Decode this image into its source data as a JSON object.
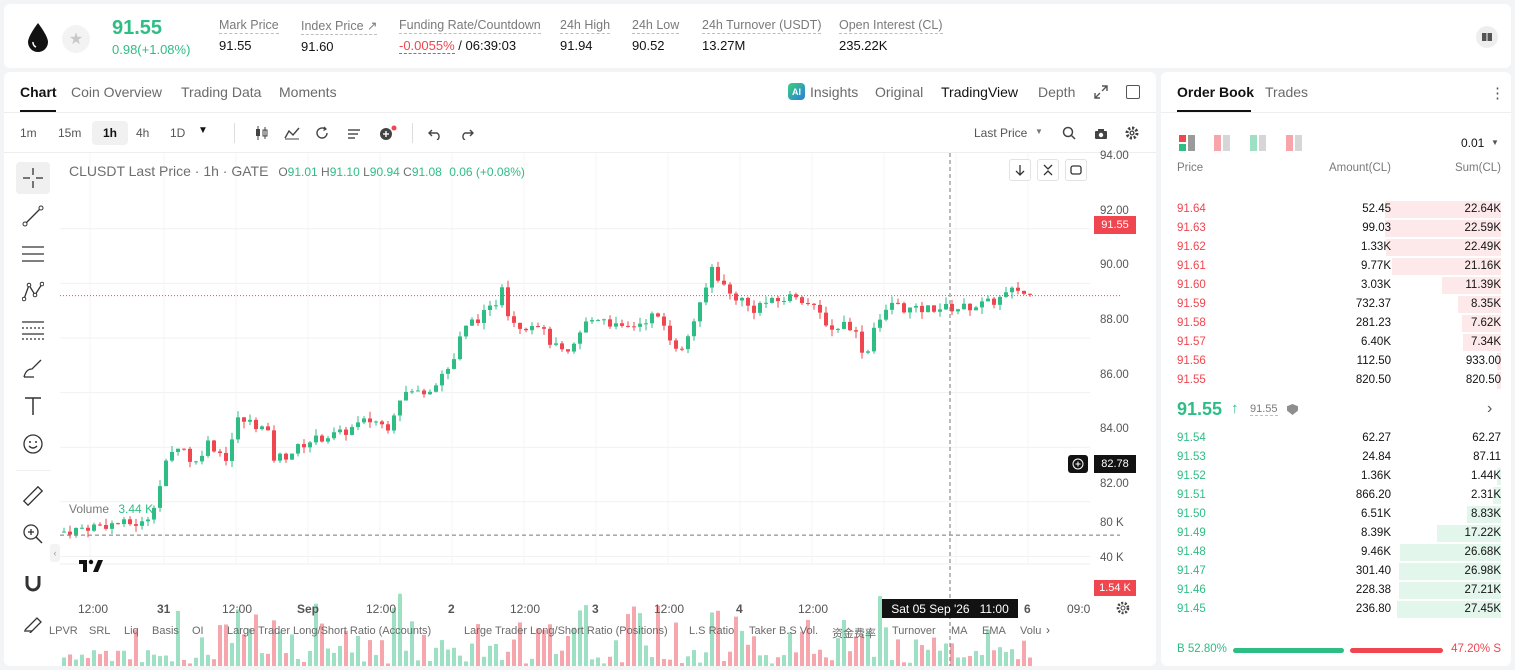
{
  "header": {
    "price": "91.55",
    "change": "0.98(+1.08%)",
    "stats": [
      {
        "label": "Mark Price",
        "value": "91.55"
      },
      {
        "label": "Index Price ↗",
        "value": "91.60"
      },
      {
        "label": "Funding Rate/Countdown",
        "value_a": "-0.0055%",
        "value_b": " / 06:39:03"
      },
      {
        "label": "24h High",
        "value": "91.94"
      },
      {
        "label": "24h Low",
        "value": "90.52"
      },
      {
        "label": "24h Turnover (USDT)",
        "value": "13.27M"
      },
      {
        "label": "Open Interest (CL)",
        "value": "235.22K"
      }
    ]
  },
  "chart_tabs": [
    "Chart",
    "Coin Overview",
    "Trading Data",
    "Moments"
  ],
  "chart_views": {
    "insights": "Insights",
    "original": "Original",
    "tradingview": "TradingView",
    "depth": "Depth",
    "ai_badge": "AI"
  },
  "timeframes": [
    "1m",
    "15m",
    "1h",
    "4h",
    "1D"
  ],
  "price_mode": "Last Price",
  "legend": {
    "symbol": "CLUSDT Last Price · 1h · GATE",
    "o_label": "O",
    "o": "91.01",
    "h_label": "H",
    "h": "91.10",
    "l_label": "L",
    "l": "90.94",
    "c_label": "C",
    "c": "91.08",
    "chg": "0.06 (+0.08%)"
  },
  "volume_legend": {
    "label": "Volume",
    "value": "3.44 K"
  },
  "price_axis": [
    "94.00",
    "92.00",
    "90.00",
    "88.00",
    "86.00",
    "84.00",
    "82.00"
  ],
  "volume_axis": [
    "80 K",
    "40 K"
  ],
  "last_price_tag": "91.55",
  "crosshair_price_tag": "82.78",
  "volume_tag": "1.54 K",
  "time_axis": [
    "12:00",
    "31",
    "12:00",
    "Sep",
    "12:00",
    "2",
    "12:00",
    "3",
    "12:00",
    "4",
    "12:00",
    "6",
    "09:0"
  ],
  "crosshair_time_date": "Sat 05 Sep '26",
  "crosshair_time_hour": "11:00",
  "bottom_indicators": [
    "LPVR",
    "SRL",
    "Liq",
    "Basis",
    "OI",
    "Large Trader Long/Short Ratio (Accounts)",
    "Large Trader Long/Short Ratio (Positions)",
    "L.S Ratio",
    "Taker B.S Vol.",
    "资金费率",
    "Turnover",
    "MA",
    "EMA",
    "Volu"
  ],
  "colors": {
    "up": "#2ebd85",
    "down": "#f0464f",
    "vol_up": "#9ee0c4",
    "vol_down": "#f5a7ad"
  },
  "orderbook": {
    "tabs": [
      "Order Book",
      "Trades"
    ],
    "precision": "0.01",
    "headers": [
      "Price",
      "Amount(CL)",
      "Sum(CL)"
    ],
    "asks": [
      {
        "price": "91.64",
        "amount": "52.45",
        "sum": "22.64K",
        "depth": 0.83
      },
      {
        "price": "91.63",
        "amount": "99.03",
        "sum": "22.59K",
        "depth": 0.83
      },
      {
        "price": "91.62",
        "amount": "1.33K",
        "sum": "22.49K",
        "depth": 0.82
      },
      {
        "price": "91.61",
        "amount": "9.77K",
        "sum": "21.16K",
        "depth": 0.78
      },
      {
        "price": "91.60",
        "amount": "3.03K",
        "sum": "11.39K",
        "depth": 0.42
      },
      {
        "price": "91.59",
        "amount": "732.37",
        "sum": "8.35K",
        "depth": 0.31
      },
      {
        "price": "91.58",
        "amount": "281.23",
        "sum": "7.62K",
        "depth": 0.28
      },
      {
        "price": "91.57",
        "amount": "6.40K",
        "sum": "7.34K",
        "depth": 0.27
      },
      {
        "price": "91.56",
        "amount": "112.50",
        "sum": "933.00",
        "depth": 0.03
      },
      {
        "price": "91.55",
        "amount": "820.50",
        "sum": "820.50",
        "depth": 0.03
      }
    ],
    "mid_price": "91.55",
    "mid_arrow": "↑",
    "mark_price": "91.55",
    "bids": [
      {
        "price": "91.54",
        "amount": "62.27",
        "sum": "62.27",
        "depth": 0.0
      },
      {
        "price": "91.53",
        "amount": "24.84",
        "sum": "87.11",
        "depth": 0.0
      },
      {
        "price": "91.52",
        "amount": "1.36K",
        "sum": "1.44K",
        "depth": 0.03
      },
      {
        "price": "91.51",
        "amount": "866.20",
        "sum": "2.31K",
        "depth": 0.06
      },
      {
        "price": "91.50",
        "amount": "6.51K",
        "sum": "8.83K",
        "depth": 0.24
      },
      {
        "price": "91.49",
        "amount": "8.39K",
        "sum": "17.22K",
        "depth": 0.46
      },
      {
        "price": "91.48",
        "amount": "9.46K",
        "sum": "26.68K",
        "depth": 0.72
      },
      {
        "price": "91.47",
        "amount": "301.40",
        "sum": "26.98K",
        "depth": 0.73
      },
      {
        "price": "91.46",
        "amount": "228.38",
        "sum": "27.21K",
        "depth": 0.73
      },
      {
        "price": "91.45",
        "amount": "236.80",
        "sum": "27.45K",
        "depth": 0.74
      }
    ],
    "buy_label": "B",
    "buy_pct": "52.80%",
    "sell_pct": "47.20%",
    "sell_label": "S",
    "buy_ratio": 0.528
  }
}
